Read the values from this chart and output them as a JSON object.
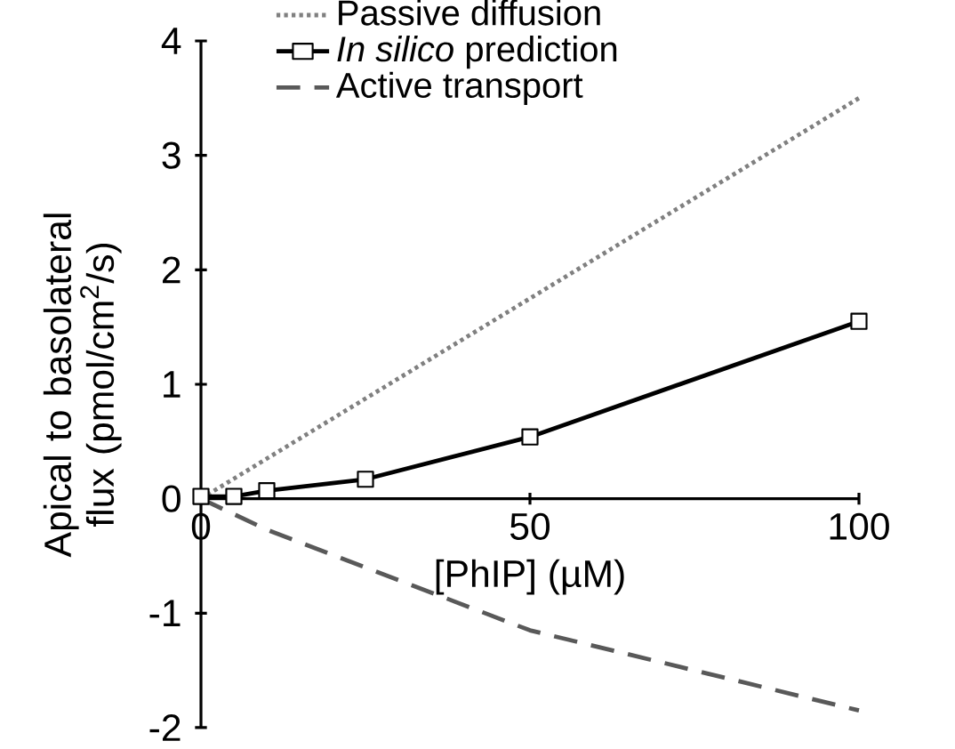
{
  "chart_data": {
    "type": "line",
    "xlabel": "[PhIP] (µM)",
    "ylabel": "Apical to basolateral flux (pmol/cm$^{2}$/s)",
    "xlim": [
      0,
      100
    ],
    "ylim": [
      -2,
      4
    ],
    "xticks": [
      0,
      50,
      100
    ],
    "yticks": [
      -2,
      -1,
      0,
      1,
      2,
      3,
      4
    ],
    "legend": "top",
    "grid": false,
    "series": [
      {
        "name": "Passive diffusion",
        "color": "#808080",
        "line_style": "dotted",
        "marker": "none",
        "x": [
          0,
          100
        ],
        "values": [
          0,
          3.5
        ]
      },
      {
        "name": "*In silico* prediction",
        "color": "#000000",
        "line_style": "solid",
        "marker": "square",
        "x": [
          0,
          5,
          10,
          25,
          50,
          100
        ],
        "values": [
          0.02,
          0.02,
          0.07,
          0.17,
          0.54,
          1.55
        ],
        "errors": [
          null,
          null,
          null,
          null,
          null,
          0.05
        ]
      },
      {
        "name": "Active transport",
        "color": "#595959",
        "line_style": "dashed",
        "marker": "none",
        "x": [
          0,
          10,
          25,
          50,
          75,
          100
        ],
        "values": [
          0,
          -0.27,
          -0.6,
          -1.15,
          -1.5,
          -1.85
        ]
      }
    ]
  }
}
